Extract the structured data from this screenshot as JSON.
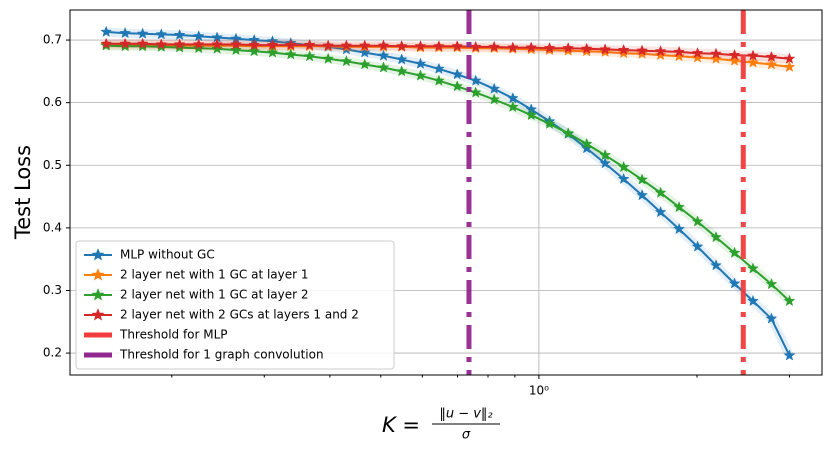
{
  "chart_data": {
    "type": "line",
    "ylabel": "Test Loss",
    "xlabel": {
      "lhs": "K =",
      "numerator": "‖u − v‖₂",
      "denominator": "σ"
    },
    "xscale": "log",
    "x": [
      0.15,
      0.163,
      0.176,
      0.191,
      0.207,
      0.225,
      0.244,
      0.265,
      0.287,
      0.311,
      0.337,
      0.366,
      0.397,
      0.43,
      0.466,
      0.506,
      0.548,
      0.595,
      0.645,
      0.699,
      0.758,
      0.822,
      0.892,
      0.967,
      1.048,
      1.137,
      1.233,
      1.337,
      1.45,
      1.572,
      1.705,
      1.849,
      2.005,
      2.174,
      2.358,
      2.557,
      2.772,
      3.0
    ],
    "series": [
      {
        "name": "MLP without GC",
        "color": "#1f77b4",
        "values": [
          0.713,
          0.711,
          0.71,
          0.709,
          0.708,
          0.706,
          0.704,
          0.702,
          0.7,
          0.698,
          0.695,
          0.692,
          0.689,
          0.685,
          0.68,
          0.675,
          0.669,
          0.662,
          0.654,
          0.645,
          0.635,
          0.622,
          0.607,
          0.589,
          0.57,
          0.55,
          0.527,
          0.503,
          0.478,
          0.452,
          0.425,
          0.398,
          0.37,
          0.34,
          0.311,
          0.283,
          0.255,
          0.196
        ]
      },
      {
        "name": "2 layer net with 1 GC at layer 1",
        "color": "#ff7f0e",
        "values": [
          0.692,
          0.692,
          0.692,
          0.692,
          0.691,
          0.691,
          0.691,
          0.691,
          0.69,
          0.69,
          0.69,
          0.69,
          0.69,
          0.689,
          0.689,
          0.689,
          0.689,
          0.688,
          0.688,
          0.688,
          0.687,
          0.687,
          0.686,
          0.685,
          0.684,
          0.683,
          0.682,
          0.681,
          0.679,
          0.678,
          0.676,
          0.674,
          0.672,
          0.67,
          0.667,
          0.664,
          0.661,
          0.657
        ]
      },
      {
        "name": "2 layer net with 1 GC at layer 2",
        "color": "#2ca02c",
        "values": [
          0.691,
          0.69,
          0.69,
          0.689,
          0.688,
          0.687,
          0.686,
          0.684,
          0.682,
          0.68,
          0.677,
          0.674,
          0.67,
          0.666,
          0.661,
          0.656,
          0.65,
          0.643,
          0.635,
          0.626,
          0.616,
          0.605,
          0.593,
          0.58,
          0.566,
          0.551,
          0.534,
          0.516,
          0.497,
          0.477,
          0.456,
          0.433,
          0.41,
          0.385,
          0.36,
          0.335,
          0.31,
          0.283
        ]
      },
      {
        "name": "2 layer net with 2 GCs at layers 1 and 2",
        "color": "#d62728",
        "values": [
          0.694,
          0.694,
          0.694,
          0.693,
          0.693,
          0.693,
          0.693,
          0.693,
          0.692,
          0.692,
          0.692,
          0.692,
          0.691,
          0.691,
          0.691,
          0.691,
          0.69,
          0.69,
          0.69,
          0.69,
          0.689,
          0.689,
          0.688,
          0.688,
          0.687,
          0.687,
          0.686,
          0.685,
          0.684,
          0.683,
          0.682,
          0.681,
          0.679,
          0.678,
          0.676,
          0.675,
          0.673,
          0.67
        ]
      }
    ],
    "vlines": [
      {
        "name": "Threshold for MLP",
        "color": "#f03c3c",
        "x": 2.45
      },
      {
        "name": "Threshold for 1 graph convolution",
        "color": "#92278f",
        "x": 0.736
      }
    ],
    "xlim": [
      0.128,
      3.46
    ],
    "ylim": [
      0.165,
      0.748
    ],
    "xticks": [
      {
        "value": 1,
        "label": "10⁰"
      }
    ],
    "xminorticks": [
      0.2,
      0.3,
      0.4,
      0.5,
      0.6,
      0.7,
      0.8,
      0.9,
      2,
      3
    ],
    "yticks": [
      0.2,
      0.3,
      0.4,
      0.5,
      0.6,
      0.7
    ],
    "grid": true,
    "legend": "lower left"
  }
}
